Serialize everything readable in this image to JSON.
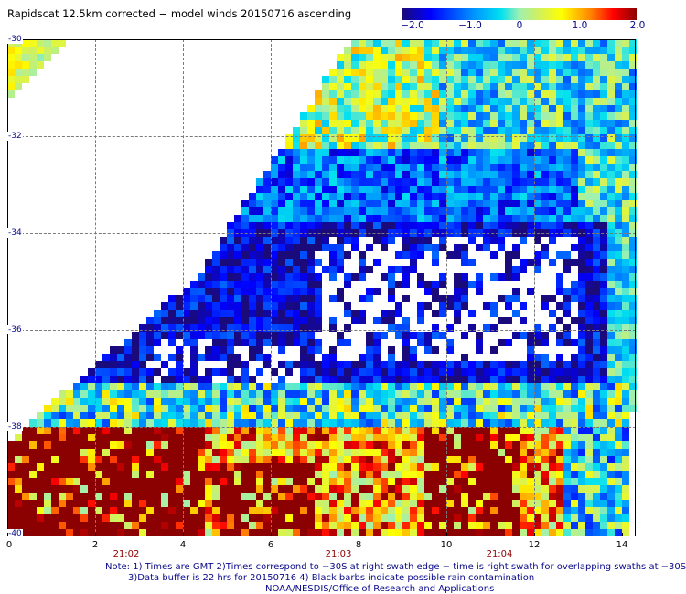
{
  "title": "Rapidscat 12.5km corrected − model winds 20150716 ascending",
  "colorbar": {
    "labels": [
      "−2.0",
      "−1.0",
      "0",
      "1.0",
      "2.0"
    ],
    "min": -2.0,
    "max": 2.0
  },
  "map": {
    "lat_labels": [
      "-30",
      "-32",
      "-34",
      "-36",
      "-38",
      "-40"
    ],
    "x_labels": [
      "0",
      "2",
      "4",
      "6",
      "8",
      "10",
      "12",
      "14"
    ],
    "time_labels": [
      "21:02",
      "21:03",
      "21:04"
    ]
  },
  "notes": {
    "line1": "Note: 1) Times are GMT 2)Times correspond to −30S at right swath edge − time is right swath for overlapping swaths at −30S",
    "line2": "3)Data buffer is 22 hrs for 20150716 4) Black barbs indicate possible rain contamination",
    "line3": "NOAA/NESDIS/Office of Research and Applications"
  },
  "colors": {
    "frame": "#000000",
    "lat_label": "#0a0a8a",
    "time_label": "#8b0000"
  }
}
